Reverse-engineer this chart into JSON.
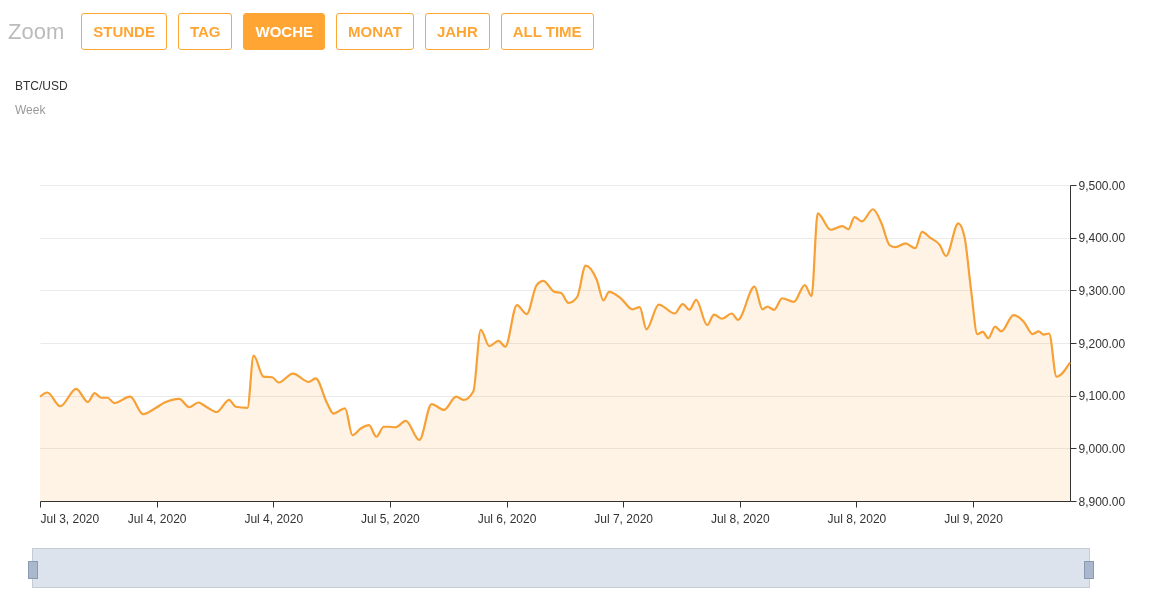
{
  "chart_data": {
    "type": "area",
    "title": "BTC/USD",
    "subtitle": "Week",
    "annotations": [
      "Zoom",
      "STUNDE",
      "TAG",
      "WOCHE",
      "MONAT",
      "JAHR",
      "ALL TIME"
    ],
    "x": [
      "2020-07-03T08:00",
      "2020-07-03T09:12",
      "2020-07-03T11:18",
      "2020-07-03T13:54",
      "2020-07-03T15:48",
      "2020-07-03T16:54",
      "2020-07-03T18:00",
      "2020-07-03T19:00",
      "2020-07-03T20:06",
      "2020-07-03T22:42",
      "2020-07-04T00:48",
      "2020-07-04T02:54",
      "2020-07-04T04:18",
      "2020-07-04T06:42",
      "2020-07-04T08:18",
      "2020-07-04T09:48",
      "2020-07-04T11:12",
      "2020-07-04T12:48",
      "2020-07-04T14:48",
      "2020-07-04T15:54",
      "2020-07-04T17:48",
      "2020-07-04T18:48",
      "2020-07-04T20:24",
      "2020-07-04T21:48",
      "2020-07-04T22:54",
      "2020-07-05T01:12",
      "2020-07-05T03:48",
      "2020-07-05T04:54",
      "2020-07-05T06:48",
      "2020-07-05T07:48",
      "2020-07-05T09:42",
      "2020-07-05T10:54",
      "2020-07-05T12:18",
      "2020-07-05T13:36",
      "2020-07-05T14:48",
      "2020-07-05T16:00",
      "2020-07-05T16:48",
      "2020-07-05T17:54",
      "2020-07-05T19:36",
      "2020-07-05T21:48",
      "2020-07-05T23:48",
      "2020-07-06T01:48",
      "2020-07-06T03:48",
      "2020-07-06T05:00",
      "2020-07-06T06:36",
      "2020-07-06T07:48",
      "2020-07-06T09:12",
      "2020-07-06T10:42",
      "2020-07-06T11:48",
      "2020-07-06T13:42",
      "2020-07-06T15:18",
      "2020-07-06T16:54",
      "2020-07-06T18:00",
      "2020-07-06T19:48",
      "2020-07-06T20:54",
      "2020-07-06T22:06",
      "2020-07-06T23:30",
      "2020-07-07T00:54",
      "2020-07-07T02:42",
      "2020-07-07T03:48",
      "2020-07-07T04:42",
      "2020-07-07T06:42",
      "2020-07-07T08:30",
      "2020-07-07T09:42",
      "2020-07-07T10:48",
      "2020-07-07T12:48",
      "2020-07-07T15:24",
      "2020-07-07T16:42",
      "2020-07-07T17:48",
      "2020-07-07T18:54",
      "2020-07-07T20:42",
      "2020-07-07T21:48",
      "2020-07-07T23:06",
      "2020-07-08T00:42",
      "2020-07-08T01:42",
      "2020-07-08T04:24",
      "2020-07-08T05:42",
      "2020-07-08T06:30",
      "2020-07-08T07:36",
      "2020-07-08T08:54",
      "2020-07-08T10:48",
      "2020-07-08T12:36",
      "2020-07-08T13:42",
      "2020-07-08T14:42",
      "2020-07-08T16:48",
      "2020-07-08T18:42",
      "2020-07-08T19:42",
      "2020-07-08T20:42",
      "2020-07-08T21:54",
      "2020-07-08T23:42",
      "2020-07-09T01:06",
      "2020-07-09T02:24",
      "2020-07-09T03:24",
      "2020-07-09T05:00",
      "2020-07-09T06:36",
      "2020-07-09T07:42",
      "2020-07-09T09:00",
      "2020-07-09T10:36",
      "2020-07-09T11:36",
      "2020-07-09T13:36",
      "2020-07-09T14:36",
      "2020-07-09T15:42",
      "2020-07-09T16:42",
      "2020-07-09T17:36",
      "2020-07-09T18:30",
      "2020-07-09T19:36",
      "2020-07-09T20:36",
      "2020-07-09T22:36",
      "2020-07-10T00:18",
      "2020-07-10T01:42",
      "2020-07-10T02:42",
      "2020-07-10T03:30",
      "2020-07-10T04:24",
      "2020-07-10T05:36",
      "2020-07-10T07:48"
    ],
    "series": [
      {
        "color": "#f7a035",
        "values": [
          9098,
          9106,
          9080,
          9113,
          9088,
          9105,
          9096,
          9096,
          9086,
          9098,
          9065,
          9077,
          9087,
          9094,
          9078,
          9087,
          9078,
          9069,
          9092,
          9079,
          9077,
          9176,
          9136,
          9135,
          9125,
          9142,
          9126,
          9133,
          9085,
          9066,
          9076,
          9025,
          9038,
          9044,
          9022,
          9041,
          9041,
          9040,
          9052,
          9016,
          9084,
          9073,
          9098,
          9092,
          9108,
          9225,
          9194,
          9204,
          9193,
          9272,
          9255,
          9310,
          9318,
          9297,
          9295,
          9276,
          9287,
          9347,
          9320,
          9281,
          9297,
          9284,
          9264,
          9268,
          9226,
          9273,
          9256,
          9274,
          9263,
          9282,
          9234,
          9254,
          9246,
          9256,
          9244,
          9307,
          9264,
          9269,
          9263,
          9285,
          9278,
          9310,
          9289,
          9446,
          9415,
          9422,
          9416,
          9439,
          9431,
          9454,
          9427,
          9386,
          9382,
          9389,
          9380,
          9411,
          9400,
          9386,
          9365,
          9427,
          9402,
          9299,
          9217,
          9221,
          9209,
          9231,
          9222,
          9253,
          9240,
          9217,
          9222,
          9216,
          9218,
          9136,
          9163
        ]
      }
    ],
    "xlim": [
      "2020-07-03T08:00",
      "2020-07-10T07:48"
    ],
    "xticks": [
      {
        "value": "2020-07-03T08:00",
        "label": "Jul 3, 2020"
      },
      {
        "value": "2020-07-04T03:00",
        "label": "Jul 4, 2020"
      },
      {
        "value": "2020-07-04T22:00",
        "label": "Jul 4, 2020"
      },
      {
        "value": "2020-07-05T17:00",
        "label": "Jul 5, 2020"
      },
      {
        "value": "2020-07-06T12:00",
        "label": "Jul 6, 2020"
      },
      {
        "value": "2020-07-07T07:00",
        "label": "Jul 7, 2020"
      },
      {
        "value": "2020-07-08T02:00",
        "label": "Jul 8, 2020"
      },
      {
        "value": "2020-07-08T21:00",
        "label": "Jul 8, 2020"
      },
      {
        "value": "2020-07-09T16:00",
        "label": "Jul 9, 2020"
      }
    ],
    "ylim": [
      8900,
      9500
    ],
    "yticks": [
      {
        "value": 8900,
        "label": "8,900.00"
      },
      {
        "value": 9000,
        "label": "9,000.00"
      },
      {
        "value": 9100,
        "label": "9,100.00"
      },
      {
        "value": 9200,
        "label": "9,200.00"
      },
      {
        "value": 9300,
        "label": "9,300.00"
      },
      {
        "value": 9400,
        "label": "9,400.00"
      },
      {
        "value": 9500,
        "label": "9,500.00"
      }
    ],
    "grid": "y"
  }
}
